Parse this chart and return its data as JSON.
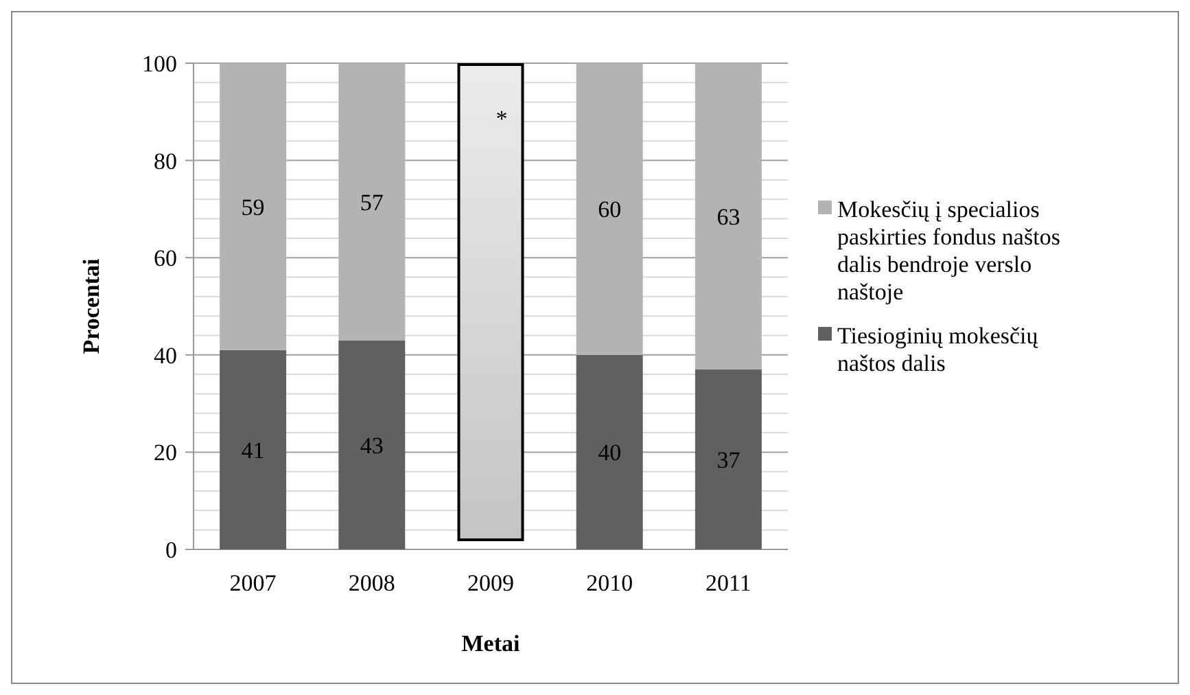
{
  "chart_data": {
    "type": "bar",
    "stacked": true,
    "xlabel": "Metai",
    "ylabel": "Procentai",
    "categories": [
      "2007",
      "2008",
      "2009",
      "2010",
      "2011"
    ],
    "series": [
      {
        "name": "Tiesioginių mokesčių naštos dalis",
        "color": "#606060",
        "values": [
          41,
          43,
          null,
          40,
          37
        ]
      },
      {
        "name": "Mokesčių į specialios paskirties fondus naštos dalis bendroje verslo naštoje",
        "color": "#b3b3b3",
        "values": [
          59,
          57,
          null,
          60,
          63
        ]
      }
    ],
    "ylim": [
      0,
      100
    ],
    "yticks": [
      0,
      {
        "value": 4,
        "label": null
      },
      {
        "value": 8,
        "label": null
      },
      {
        "value": 12,
        "label": null
      },
      {
        "value": 16,
        "label": null
      },
      20,
      {
        "value": 24,
        "label": null
      },
      {
        "value": 28,
        "label": null
      },
      {
        "value": 32,
        "label": null
      },
      {
        "value": 36,
        "label": null
      },
      40,
      {
        "value": 44,
        "label": null
      },
      {
        "value": 48,
        "label": null
      },
      {
        "value": 52,
        "label": null
      },
      {
        "value": 56,
        "label": null
      },
      60,
      {
        "value": 64,
        "label": null
      },
      {
        "value": 68,
        "label": null
      },
      {
        "value": 72,
        "label": null
      },
      {
        "value": 76,
        "label": null
      },
      80,
      {
        "value": 84,
        "label": null
      },
      {
        "value": 88,
        "label": null
      },
      {
        "value": 92,
        "label": null
      },
      {
        "value": 96,
        "label": null
      },
      100
    ],
    "grid": "y",
    "legend": "right",
    "data_labels": true,
    "annotations": [
      "*"
    ]
  }
}
